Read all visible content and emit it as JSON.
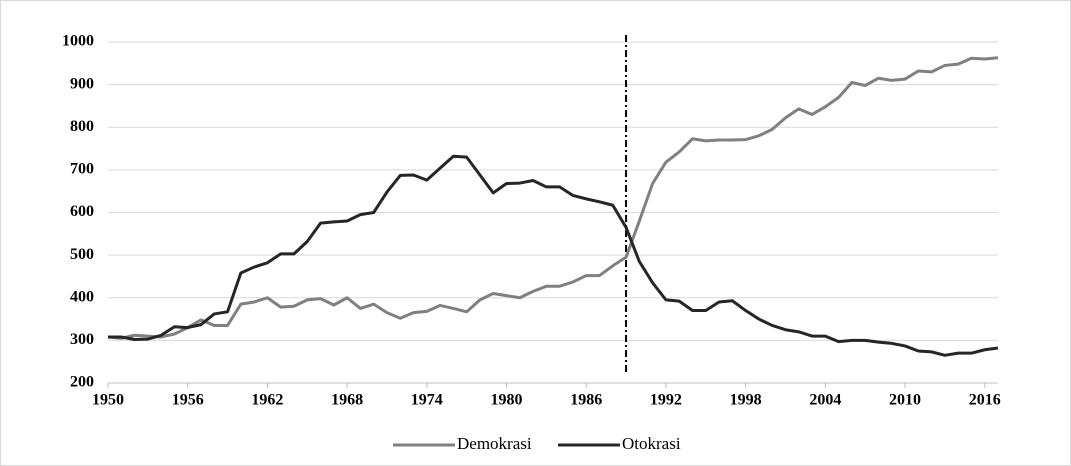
{
  "chart_data": {
    "type": "line",
    "x": [
      1950,
      1951,
      1952,
      1953,
      1954,
      1955,
      1956,
      1957,
      1958,
      1959,
      1960,
      1961,
      1962,
      1963,
      1964,
      1965,
      1966,
      1967,
      1968,
      1969,
      1970,
      1971,
      1972,
      1973,
      1974,
      1975,
      1976,
      1977,
      1978,
      1979,
      1980,
      1981,
      1982,
      1983,
      1984,
      1985,
      1986,
      1987,
      1988,
      1989,
      1990,
      1991,
      1992,
      1993,
      1994,
      1995,
      1996,
      1997,
      1998,
      1999,
      2000,
      2001,
      2002,
      2003,
      2004,
      2005,
      2006,
      2007,
      2008,
      2009,
      2010,
      2011,
      2012,
      2013,
      2014,
      2015,
      2016,
      2017
    ],
    "series": [
      {
        "name": "Demokrasi",
        "color": "#808080",
        "values": [
          308,
          305,
          312,
          310,
          308,
          315,
          330,
          348,
          335,
          335,
          385,
          390,
          400,
          378,
          380,
          395,
          398,
          383,
          400,
          375,
          385,
          365,
          352,
          365,
          368,
          382,
          375,
          367,
          395,
          410,
          405,
          400,
          415,
          427,
          427,
          437,
          452,
          452,
          475,
          495,
          580,
          668,
          718,
          742,
          773,
          768,
          770,
          770,
          771,
          780,
          795,
          822,
          843,
          830,
          848,
          870,
          905,
          898,
          915,
          910,
          913,
          932,
          930,
          945,
          948,
          962,
          960,
          963
        ]
      },
      {
        "name": "Otokrasi",
        "color": "#262626",
        "values": [
          308,
          308,
          302,
          303,
          312,
          332,
          330,
          337,
          362,
          367,
          458,
          472,
          482,
          503,
          503,
          532,
          575,
          578,
          580,
          595,
          600,
          648,
          687,
          688,
          676,
          704,
          732,
          730,
          688,
          646,
          668,
          669,
          675,
          660,
          660,
          640,
          632,
          625,
          617,
          565,
          485,
          435,
          395,
          392,
          370,
          370,
          390,
          393,
          370,
          350,
          335,
          325,
          320,
          310,
          310,
          297,
          300,
          300,
          296,
          293,
          287,
          275,
          273,
          265,
          270,
          270,
          278,
          282
        ]
      }
    ],
    "xlim": [
      1950,
      2017
    ],
    "xticks": [
      1950,
      1956,
      1962,
      1968,
      1974,
      1980,
      1986,
      1992,
      1998,
      2004,
      2010,
      2016
    ],
    "ylim": [
      200,
      1000
    ],
    "yticks": [
      200,
      300,
      400,
      500,
      600,
      700,
      800,
      900,
      1000
    ],
    "vline": 1989,
    "grid": true,
    "legend": "bottom"
  }
}
